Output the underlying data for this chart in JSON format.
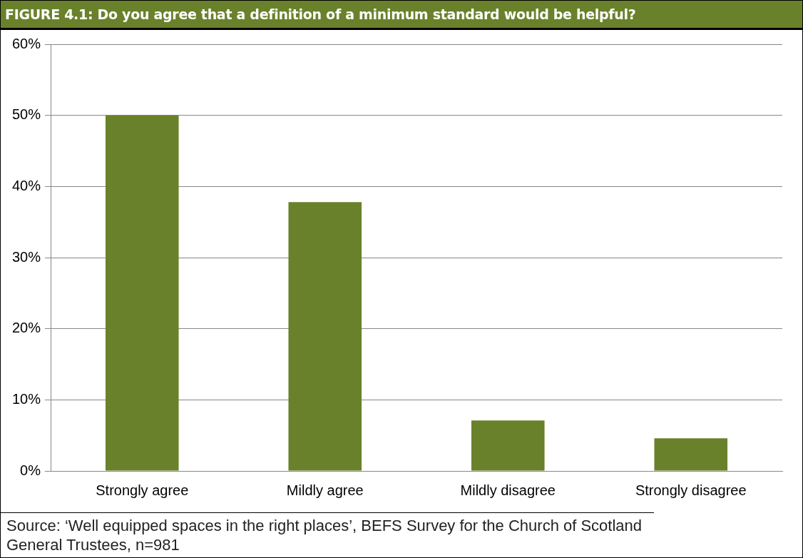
{
  "chart_data": {
    "type": "bar",
    "title": "FIGURE 4.1: Do you agree that a definition of a minimum standard would be helpful?",
    "categories": [
      "Strongly agree",
      "Mildly agree",
      "Mildly disagree",
      "Strongly disagree"
    ],
    "values": [
      50,
      37.8,
      7.1,
      4.6
    ],
    "color": "#6a812b",
    "ylim": [
      0,
      60
    ],
    "yticks": [
      {
        "value": 0,
        "label": "0%"
      },
      {
        "value": 10,
        "label": "10%"
      },
      {
        "value": 20,
        "label": "20%"
      },
      {
        "value": 30,
        "label": "30%"
      },
      {
        "value": 40,
        "label": "40%"
      },
      {
        "value": 50,
        "label": "50%"
      },
      {
        "value": 60,
        "label": "60%"
      }
    ],
    "grid": "y",
    "legend": false,
    "annotations": [
      "Source: ‘Well equipped spaces in the right places’, BEFS Survey for the Church of Scotland General Trustees, n=981"
    ]
  }
}
